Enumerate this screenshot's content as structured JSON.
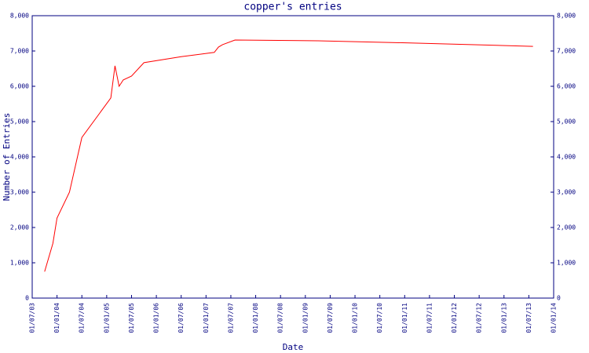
{
  "chart_data": {
    "type": "line",
    "title": "copper's entries",
    "x_label": "Date",
    "y_label": "Number of Entries",
    "x": [
      "2003-10",
      "2003-12",
      "2004-01",
      "2004-04",
      "2004-07",
      "2005-02",
      "2005-03",
      "2005-04",
      "2005-05",
      "2005-07",
      "2005-10",
      "2006-07",
      "2007-03",
      "2007-04",
      "2007-05",
      "2007-08",
      "2009-04",
      "2010-10",
      "2012-05",
      "2013-08"
    ],
    "series": [
      {
        "color": "#ff0000",
        "values": [
          750,
          1550,
          2270,
          3000,
          4550,
          5670,
          6580,
          6000,
          6180,
          6290,
          6670,
          6840,
          6960,
          7110,
          7180,
          7310,
          7290,
          7240,
          7180,
          7130
        ]
      }
    ],
    "xlim": [
      "2003-07",
      "2014-01"
    ],
    "xticks": [
      {
        "value": "2003-07",
        "label": "01/07/03"
      },
      {
        "value": "2004-01",
        "label": "01/01/04"
      },
      {
        "value": "2004-07",
        "label": "01/07/04"
      },
      {
        "value": "2005-01",
        "label": "01/01/05"
      },
      {
        "value": "2005-07",
        "label": "01/07/05"
      },
      {
        "value": "2006-01",
        "label": "01/01/06"
      },
      {
        "value": "2006-07",
        "label": "01/07/06"
      },
      {
        "value": "2007-01",
        "label": "01/01/07"
      },
      {
        "value": "2007-07",
        "label": "01/07/07"
      },
      {
        "value": "2008-01",
        "label": "01/01/08"
      },
      {
        "value": "2008-07",
        "label": "01/07/08"
      },
      {
        "value": "2009-01",
        "label": "01/01/09"
      },
      {
        "value": "2009-07",
        "label": "01/07/09"
      },
      {
        "value": "2010-01",
        "label": "01/01/10"
      },
      {
        "value": "2010-07",
        "label": "01/07/10"
      },
      {
        "value": "2011-01",
        "label": "01/01/11"
      },
      {
        "value": "2011-07",
        "label": "01/07/11"
      },
      {
        "value": "2012-01",
        "label": "01/01/12"
      },
      {
        "value": "2012-07",
        "label": "01/07/12"
      },
      {
        "value": "2013-01",
        "label": "01/01/13"
      },
      {
        "value": "2013-07",
        "label": "01/07/13"
      },
      {
        "value": "2014-01",
        "label": "01/01/14"
      }
    ],
    "ylim": [
      0,
      8000
    ],
    "yticks": [
      0,
      {
        "value": 1000,
        "label": "1,000"
      },
      {
        "value": 2000,
        "label": "2,000"
      },
      {
        "value": 3000,
        "label": "3,000"
      },
      {
        "value": 4000,
        "label": "4,000"
      },
      {
        "value": 5000,
        "label": "5,000"
      },
      {
        "value": 6000,
        "label": "6,000"
      },
      {
        "value": 7000,
        "label": "7,000"
      },
      {
        "value": 8000,
        "label": "8,000"
      }
    ],
    "axis_color": "#000080"
  }
}
